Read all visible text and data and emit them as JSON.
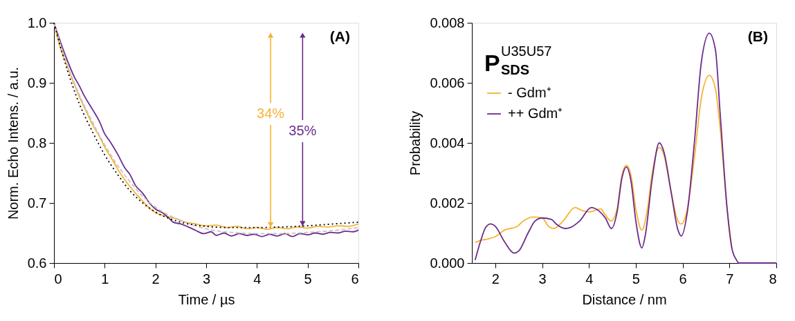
{
  "chart_data": [
    {
      "type": "line",
      "xlabel": "Time / µs",
      "ylabel": "Norm. Echo Intens. / a.u.",
      "xlim": [
        0,
        6
      ],
      "xticks": [
        0,
        1,
        2,
        3,
        4,
        5,
        6
      ],
      "ylim": [
        0.6,
        1.0
      ],
      "yticks": [
        0.6,
        0.7,
        0.8,
        0.9,
        {
          "value": 1.0,
          "label": "1.0"
        }
      ],
      "grid": false,
      "legend": false,
      "annotations": [
        "(A)",
        {
          "text": "34%",
          "x": 4.27,
          "y": 0.658
        },
        {
          "text": "35%",
          "x": 4.9,
          "y": 0.66
        }
      ],
      "series": [
        {
          "color": "#f7b234",
          "line_style": "solid",
          "x": [
            0,
            0.1,
            0.25,
            0.4,
            0.5,
            0.65,
            0.75,
            0.9,
            1.0,
            1.15,
            1.25,
            1.4,
            1.5,
            1.65,
            1.75,
            1.9,
            2.0,
            2.2,
            2.4,
            2.6,
            2.8,
            3.0,
            3.2,
            3.4,
            3.6,
            3.8,
            4.0,
            4.2,
            4.4,
            4.6,
            4.8,
            5.0,
            5.2,
            5.4,
            5.6,
            5.8,
            6.0
          ],
          "values": [
            1.0,
            0.965,
            0.93,
            0.898,
            0.877,
            0.85,
            0.832,
            0.81,
            0.793,
            0.772,
            0.757,
            0.738,
            0.727,
            0.712,
            0.703,
            0.69,
            0.684,
            0.678,
            0.674,
            0.668,
            0.665,
            0.662,
            0.663,
            0.659,
            0.661,
            0.657,
            0.659,
            0.656,
            0.659,
            0.657,
            0.66,
            0.658,
            0.661,
            0.66,
            0.662,
            0.661,
            0.665
          ]
        },
        {
          "color": "#6b2b8c",
          "line_style": "solid",
          "x": [
            0,
            0.1,
            0.25,
            0.4,
            0.5,
            0.6,
            0.75,
            0.9,
            1.0,
            1.1,
            1.25,
            1.4,
            1.5,
            1.6,
            1.75,
            1.9,
            2.0,
            2.15,
            2.25,
            2.35,
            2.5,
            2.65,
            2.8,
            2.95,
            3.1,
            3.2,
            3.35,
            3.5,
            3.65,
            3.8,
            3.95,
            4.1,
            4.25,
            4.4,
            4.55,
            4.7,
            4.85,
            5.0,
            5.15,
            5.3,
            5.45,
            5.6,
            5.75,
            5.9,
            6.0
          ],
          "values": [
            1.0,
            0.975,
            0.94,
            0.91,
            0.895,
            0.878,
            0.857,
            0.835,
            0.815,
            0.803,
            0.782,
            0.758,
            0.747,
            0.73,
            0.716,
            0.698,
            0.69,
            0.683,
            0.676,
            0.668,
            0.665,
            0.66,
            0.654,
            0.649,
            0.652,
            0.646,
            0.65,
            0.645,
            0.649,
            0.646,
            0.648,
            0.644,
            0.648,
            0.645,
            0.649,
            0.644,
            0.649,
            0.647,
            0.65,
            0.648,
            0.651,
            0.65,
            0.653,
            0.652,
            0.655
          ]
        },
        {
          "color": "#c4c4c4",
          "line_style": "dashed",
          "x": [
            0,
            0.25,
            0.5,
            0.75,
            1.0,
            1.25,
            1.5,
            1.75,
            2.0,
            2.5,
            3.0,
            3.5,
            4.0,
            4.5,
            5.0,
            5.5,
            6.0
          ],
          "values": [
            1.0,
            0.933,
            0.88,
            0.836,
            0.797,
            0.763,
            0.735,
            0.711,
            0.693,
            0.671,
            0.657,
            0.651,
            0.649,
            0.649,
            0.651,
            0.654,
            0.659
          ]
        },
        {
          "color": "#000000",
          "line_style": "dotted",
          "x": [
            0,
            0.25,
            0.5,
            0.75,
            1.0,
            1.25,
            1.5,
            1.75,
            2.0,
            2.5,
            3.0,
            3.5,
            4.0,
            4.5,
            5.0,
            5.5,
            6.0
          ],
          "values": [
            1.0,
            0.925,
            0.865,
            0.82,
            0.78,
            0.748,
            0.72,
            0.7,
            0.685,
            0.668,
            0.661,
            0.659,
            0.659,
            0.66,
            0.662,
            0.665,
            0.668
          ]
        }
      ]
    },
    {
      "type": "line",
      "xlabel": "Distance / nm",
      "ylabel": "Probability",
      "xlim": [
        1.5,
        8
      ],
      "xticks": [
        2,
        3,
        4,
        5,
        6,
        7,
        8
      ],
      "ylim": [
        0,
        0.008
      ],
      "yticks": [
        {
          "value": 0,
          "label": "0.000"
        },
        {
          "value": 0.002,
          "label": "0.002"
        },
        {
          "value": 0.004,
          "label": "0.004"
        },
        {
          "value": 0.006,
          "label": "0.006"
        },
        {
          "value": 0.008,
          "label": "0.008"
        }
      ],
      "grid": false,
      "legend": "top left",
      "annotations": [
        "(B)",
        "P$^{U35U57}$$_{SDS}$"
      ],
      "series": [
        {
          "name": "- Gdm⁺",
          "color": "#f7b234",
          "x": [
            1.57,
            1.7,
            1.85,
            2.0,
            2.2,
            2.45,
            2.6,
            2.8,
            3.0,
            3.15,
            3.25,
            3.45,
            3.7,
            3.85,
            4.0,
            4.25,
            4.35,
            4.47,
            4.6,
            4.7,
            4.8,
            4.9,
            5.0,
            5.13,
            5.25,
            5.35,
            5.5,
            5.6,
            5.75,
            5.9,
            5.97,
            6.1,
            6.25,
            6.4,
            6.57,
            6.7,
            6.8,
            6.95,
            7.05
          ],
          "values": [
            0.00068,
            0.00076,
            0.0008,
            0.00088,
            0.0011,
            0.0012,
            0.0014,
            0.00153,
            0.0015,
            0.0012,
            0.00115,
            0.0014,
            0.00185,
            0.00175,
            0.0017,
            0.0018,
            0.0016,
            0.0014,
            0.0018,
            0.0029,
            0.00325,
            0.0029,
            0.0018,
            0.0011,
            0.0018,
            0.003,
            0.00385,
            0.0036,
            0.0024,
            0.0014,
            0.0013,
            0.0018,
            0.0035,
            0.0055,
            0.00625,
            0.0058,
            0.0045,
            0.0018,
            0.0005
          ]
        },
        {
          "name": "++ Gdm⁺",
          "color": "#6b2b8c",
          "x": [
            1.57,
            1.7,
            1.8,
            1.9,
            2.0,
            2.2,
            2.4,
            2.5,
            2.7,
            2.85,
            3.0,
            3.2,
            3.3,
            3.5,
            3.6,
            3.8,
            4.05,
            4.2,
            4.35,
            4.48,
            4.6,
            4.7,
            4.8,
            4.9,
            5.0,
            5.13,
            5.2,
            5.35,
            5.5,
            5.6,
            5.75,
            5.9,
            5.97,
            6.1,
            6.25,
            6.4,
            6.57,
            6.7,
            6.8,
            6.95,
            7.05,
            7.15,
            7.2,
            8.0
          ],
          "values": [
            0.0001,
            0.0008,
            0.0012,
            0.0013,
            0.00122,
            0.0007,
            0.00033,
            0.0004,
            0.001,
            0.0014,
            0.0015,
            0.00145,
            0.0013,
            0.00115,
            0.00118,
            0.0014,
            0.00185,
            0.00175,
            0.0015,
            0.00115,
            0.0017,
            0.0028,
            0.0032,
            0.0027,
            0.0014,
            0.0005,
            0.0009,
            0.0028,
            0.004,
            0.0037,
            0.0024,
            0.0011,
            0.0009,
            0.0017,
            0.004,
            0.0067,
            0.00765,
            0.0071,
            0.005,
            0.0018,
            0.0005,
            0.0001,
            0,
            0
          ]
        }
      ]
    }
  ]
}
